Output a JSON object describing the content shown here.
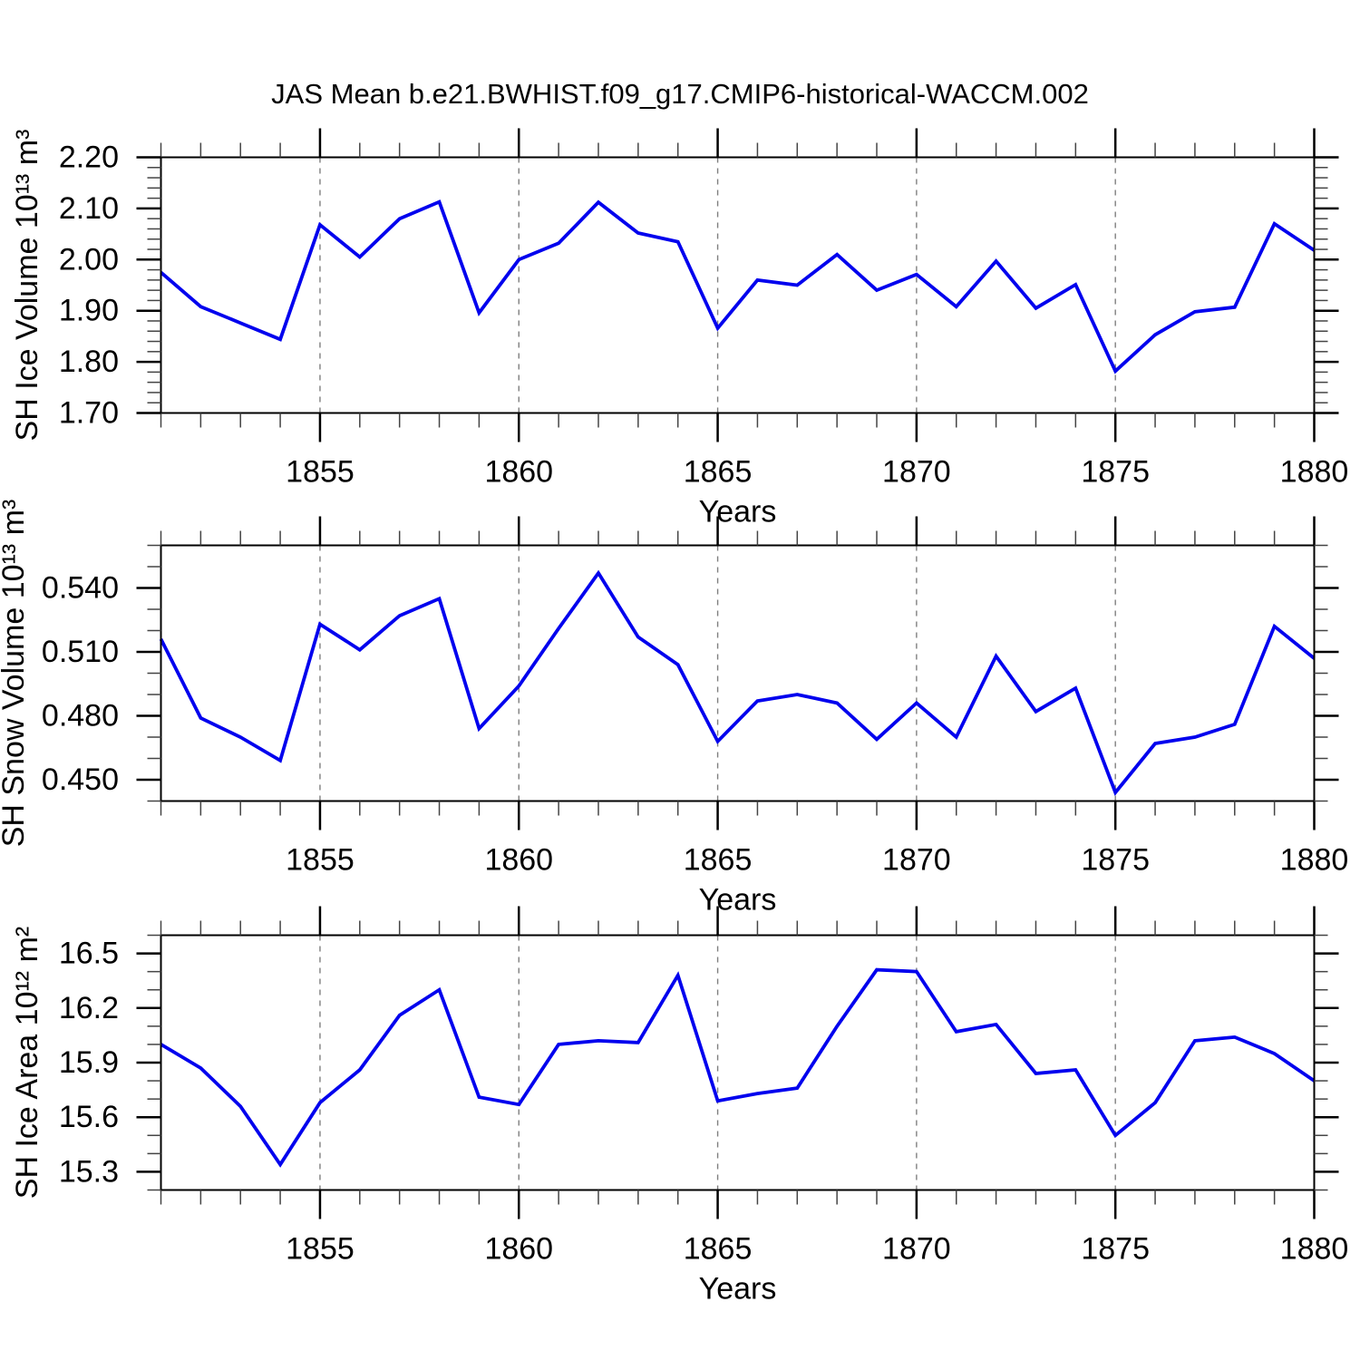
{
  "title": "JAS Mean b.e21.BWHIST.f09_g17.CMIP6-historical-WACCM.002",
  "colors": {
    "line": "#0000ee",
    "grid": "#7f7f7f",
    "axis": "#000000",
    "minor_tick": "#444444",
    "text": "#000000"
  },
  "x_axis": {
    "label": "Years",
    "years": [
      1851,
      1852,
      1853,
      1854,
      1855,
      1856,
      1857,
      1858,
      1859,
      1860,
      1861,
      1862,
      1863,
      1864,
      1865,
      1866,
      1867,
      1868,
      1869,
      1870,
      1871,
      1872,
      1873,
      1874,
      1875,
      1876,
      1877,
      1878,
      1879,
      1880
    ],
    "major_ticks": [
      1855,
      1860,
      1865,
      1870,
      1875,
      1880
    ],
    "gridline_ticks": [
      1855,
      1860,
      1865,
      1870,
      1875
    ],
    "minor_step": 1,
    "xlim": [
      1851,
      1880
    ]
  },
  "chart_data": [
    {
      "id": "sh-ice-volume",
      "type": "line",
      "ylabel": "SH Ice Volume 10¹³ m³",
      "xlabel": "Years",
      "ylim": [
        1.7,
        2.2
      ],
      "y_major_ticks": [
        1.7,
        1.8,
        1.9,
        2.0,
        2.1,
        2.2
      ],
      "y_minor_step": 0.02,
      "y_decimals": 2,
      "grid": "vertical-dashed",
      "legend": "none",
      "x": [
        1851,
        1852,
        1853,
        1854,
        1855,
        1856,
        1857,
        1858,
        1859,
        1860,
        1861,
        1862,
        1863,
        1864,
        1865,
        1866,
        1867,
        1868,
        1869,
        1870,
        1871,
        1872,
        1873,
        1874,
        1875,
        1876,
        1877,
        1878,
        1879,
        1880
      ],
      "values": [
        1.975,
        1.908,
        1.876,
        1.844,
        2.068,
        2.005,
        2.08,
        2.113,
        1.896,
        2.0,
        2.032,
        2.112,
        2.052,
        2.035,
        1.866,
        1.96,
        1.95,
        2.01,
        1.94,
        1.971,
        1.908,
        1.997,
        1.905,
        1.951,
        1.782,
        1.853,
        1.898,
        1.907,
        2.07,
        2.018
      ]
    },
    {
      "id": "sh-snow-volume",
      "type": "line",
      "ylabel": "SH Snow Volume 10¹³ m³",
      "xlabel": "Years",
      "ylim": [
        0.44,
        0.56
      ],
      "y_major_ticks": [
        0.45,
        0.48,
        0.51,
        0.54
      ],
      "y_minor_step": 0.01,
      "y_decimals": 3,
      "grid": "vertical-dashed",
      "legend": "none",
      "x": [
        1851,
        1852,
        1853,
        1854,
        1855,
        1856,
        1857,
        1858,
        1859,
        1860,
        1861,
        1862,
        1863,
        1864,
        1865,
        1866,
        1867,
        1868,
        1869,
        1870,
        1871,
        1872,
        1873,
        1874,
        1875,
        1876,
        1877,
        1878,
        1879,
        1880
      ],
      "values": [
        0.516,
        0.479,
        0.47,
        0.459,
        0.523,
        0.511,
        0.527,
        0.535,
        0.474,
        0.494,
        0.521,
        0.547,
        0.517,
        0.504,
        0.468,
        0.487,
        0.49,
        0.486,
        0.469,
        0.486,
        0.47,
        0.508,
        0.482,
        0.493,
        0.444,
        0.467,
        0.47,
        0.476,
        0.522,
        0.507
      ]
    },
    {
      "id": "sh-ice-area",
      "type": "line",
      "ylabel": "SH Ice Area 10¹² m²",
      "xlabel": "Years",
      "ylim": [
        15.2,
        16.6
      ],
      "y_major_ticks": [
        15.3,
        15.6,
        15.9,
        16.2,
        16.5
      ],
      "y_minor_step": 0.1,
      "y_decimals": 1,
      "grid": "vertical-dashed",
      "legend": "none",
      "x": [
        1851,
        1852,
        1853,
        1854,
        1855,
        1856,
        1857,
        1858,
        1859,
        1860,
        1861,
        1862,
        1863,
        1864,
        1865,
        1866,
        1867,
        1868,
        1869,
        1870,
        1871,
        1872,
        1873,
        1874,
        1875,
        1876,
        1877,
        1878,
        1879,
        1880
      ],
      "values": [
        16.0,
        15.87,
        15.66,
        15.34,
        15.68,
        15.86,
        16.16,
        16.3,
        15.71,
        15.67,
        16.0,
        16.02,
        16.01,
        16.38,
        15.69,
        15.73,
        15.76,
        16.1,
        16.41,
        16.4,
        16.07,
        16.11,
        15.84,
        15.86,
        15.5,
        15.68,
        16.02,
        16.04,
        15.95,
        15.8
      ]
    }
  ]
}
